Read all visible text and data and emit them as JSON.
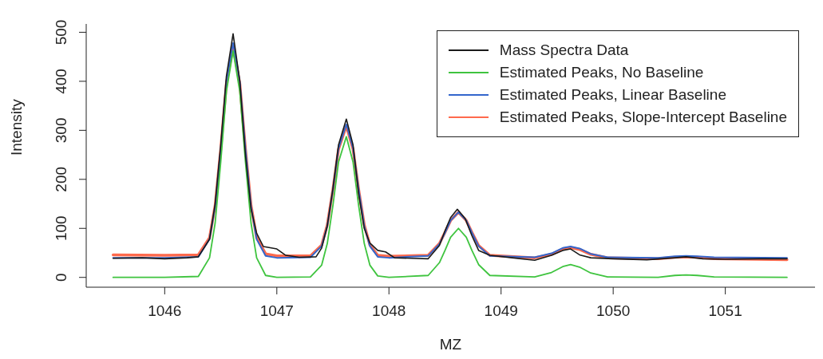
{
  "chart_data": {
    "type": "line",
    "xlabel": "MZ",
    "ylabel": "Intensity",
    "xlim": [
      1045.3,
      1051.8
    ],
    "xticks": [
      1046,
      1047,
      1048,
      1049,
      1050,
      1051
    ],
    "ylim": [
      -20,
      517
    ],
    "yticks": [
      0,
      100,
      200,
      300,
      400,
      500
    ],
    "grid": false,
    "legend": "top right",
    "marker": "none",
    "line_style": "solid",
    "series": [
      {
        "name": "Mass Spectra Data",
        "color": "#1a1a1a",
        "x": [
          1045.54,
          1045.8,
          1046.0,
          1046.2,
          1046.3,
          1046.4,
          1046.45,
          1046.5,
          1046.55,
          1046.61,
          1046.67,
          1046.72,
          1046.77,
          1046.82,
          1046.88,
          1046.95,
          1047.0,
          1047.08,
          1047.2,
          1047.35,
          1047.4,
          1047.45,
          1047.5,
          1047.55,
          1047.62,
          1047.68,
          1047.73,
          1047.78,
          1047.83,
          1047.9,
          1047.97,
          1048.05,
          1048.2,
          1048.35,
          1048.45,
          1048.5,
          1048.55,
          1048.61,
          1048.68,
          1048.74,
          1048.8,
          1048.9,
          1049.1,
          1049.3,
          1049.45,
          1049.55,
          1049.62,
          1049.7,
          1049.8,
          1050.0,
          1050.3,
          1050.55,
          1050.65,
          1050.8,
          1051.0,
          1051.3,
          1051.55
        ],
        "values": [
          39,
          40,
          38,
          40,
          42,
          78,
          150,
          270,
          410,
          497,
          400,
          250,
          140,
          90,
          63,
          60,
          58,
          45,
          41,
          42,
          60,
          105,
          180,
          270,
          323,
          270,
          170,
          100,
          70,
          55,
          52,
          40,
          39,
          38,
          65,
          95,
          122,
          139,
          120,
          85,
          55,
          45,
          40,
          35,
          45,
          55,
          58,
          46,
          40,
          38,
          36,
          40,
          42,
          38,
          37,
          38,
          38
        ]
      },
      {
        "name": "Estimated Peaks, No Baseline",
        "color": "#3fc43f",
        "x": [
          1045.54,
          1046.0,
          1046.3,
          1046.4,
          1046.45,
          1046.5,
          1046.55,
          1046.61,
          1046.67,
          1046.72,
          1046.77,
          1046.82,
          1046.9,
          1047.0,
          1047.3,
          1047.4,
          1047.45,
          1047.5,
          1047.55,
          1047.62,
          1047.68,
          1047.73,
          1047.78,
          1047.83,
          1047.9,
          1048.0,
          1048.35,
          1048.45,
          1048.5,
          1048.55,
          1048.62,
          1048.69,
          1048.74,
          1048.8,
          1048.9,
          1049.3,
          1049.45,
          1049.55,
          1049.62,
          1049.7,
          1049.8,
          1049.95,
          1050.4,
          1050.55,
          1050.65,
          1050.75,
          1050.9,
          1051.55
        ],
        "values": [
          0,
          0,
          2,
          40,
          111,
          236,
          379,
          462,
          379,
          236,
          111,
          40,
          4,
          0,
          1,
          25,
          69,
          146,
          235,
          287,
          235,
          146,
          69,
          25,
          3,
          0,
          4,
          30,
          55,
          82,
          100,
          82,
          55,
          26,
          4,
          1,
          10,
          22,
          26,
          21,
          9,
          1,
          0,
          4,
          5,
          4,
          1,
          0
        ]
      },
      {
        "name": "Estimated Peaks, Linear Baseline",
        "color": "#3366cc",
        "x": [
          1045.54,
          1046.0,
          1046.3,
          1046.4,
          1046.45,
          1046.5,
          1046.55,
          1046.61,
          1046.67,
          1046.72,
          1046.77,
          1046.82,
          1046.9,
          1047.0,
          1047.3,
          1047.4,
          1047.45,
          1047.5,
          1047.55,
          1047.62,
          1047.68,
          1047.73,
          1047.78,
          1047.83,
          1047.9,
          1048.0,
          1048.35,
          1048.45,
          1048.5,
          1048.55,
          1048.62,
          1048.69,
          1048.74,
          1048.8,
          1048.9,
          1049.3,
          1049.45,
          1049.55,
          1049.62,
          1049.7,
          1049.8,
          1049.95,
          1050.4,
          1050.55,
          1050.65,
          1050.75,
          1050.9,
          1051.55
        ],
        "values": [
          40,
          40,
          42,
          78,
          145,
          263,
          399,
          478,
          399,
          263,
          145,
          78,
          44,
          40,
          41,
          64,
          105,
          179,
          263,
          312,
          263,
          179,
          105,
          64,
          42,
          40,
          44,
          68,
          91,
          116,
          133,
          116,
          91,
          64,
          44,
          41,
          49,
          60,
          63,
          59,
          48,
          41,
          40,
          43,
          44,
          43,
          41,
          40
        ]
      },
      {
        "name": "Estimated Peaks, Slope-Intercept Baseline",
        "color": "#ff6a4d",
        "x": [
          1045.54,
          1046.0,
          1046.3,
          1046.4,
          1046.45,
          1046.5,
          1046.55,
          1046.61,
          1046.67,
          1046.72,
          1046.77,
          1046.82,
          1046.9,
          1047.0,
          1047.3,
          1047.4,
          1047.45,
          1047.5,
          1047.55,
          1047.62,
          1047.68,
          1047.73,
          1047.78,
          1047.83,
          1047.9,
          1048.0,
          1048.35,
          1048.45,
          1048.5,
          1048.55,
          1048.62,
          1048.69,
          1048.74,
          1048.8,
          1048.9,
          1049.3,
          1049.45,
          1049.55,
          1049.62,
          1049.7,
          1049.8,
          1049.95,
          1050.4,
          1050.55,
          1050.65,
          1050.75,
          1050.9,
          1051.55
        ],
        "values": [
          46,
          45,
          46,
          81,
          147,
          262,
          395,
          472,
          395,
          262,
          147,
          81,
          48,
          44,
          44,
          66,
          107,
          179,
          261,
          309,
          261,
          179,
          107,
          66,
          45,
          43,
          45,
          69,
          92,
          116,
          133,
          116,
          92,
          65,
          45,
          40,
          47,
          58,
          61,
          57,
          47,
          40,
          38,
          41,
          42,
          41,
          38,
          36
        ]
      }
    ]
  }
}
